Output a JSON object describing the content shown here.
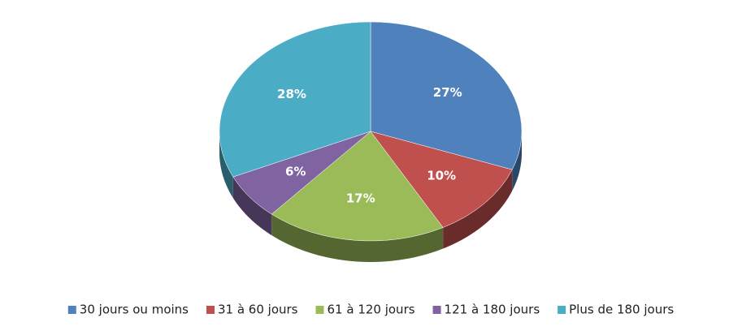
{
  "chart_data": {
    "type": "pie",
    "categories": [
      "30 jours ou moins",
      "31 à 60 jours",
      "61 à 120 jours",
      "121 à 180 jours",
      "Plus de 180 jours"
    ],
    "values": [
      27,
      10,
      17,
      6,
      28
    ],
    "value_labels": [
      "27%",
      "10%",
      "17%",
      "6%",
      "28%"
    ],
    "colors": [
      "#4f81bd",
      "#c0504d",
      "#9bbb59",
      "#8064a2",
      "#4bacc6"
    ],
    "legend": "bottom"
  }
}
